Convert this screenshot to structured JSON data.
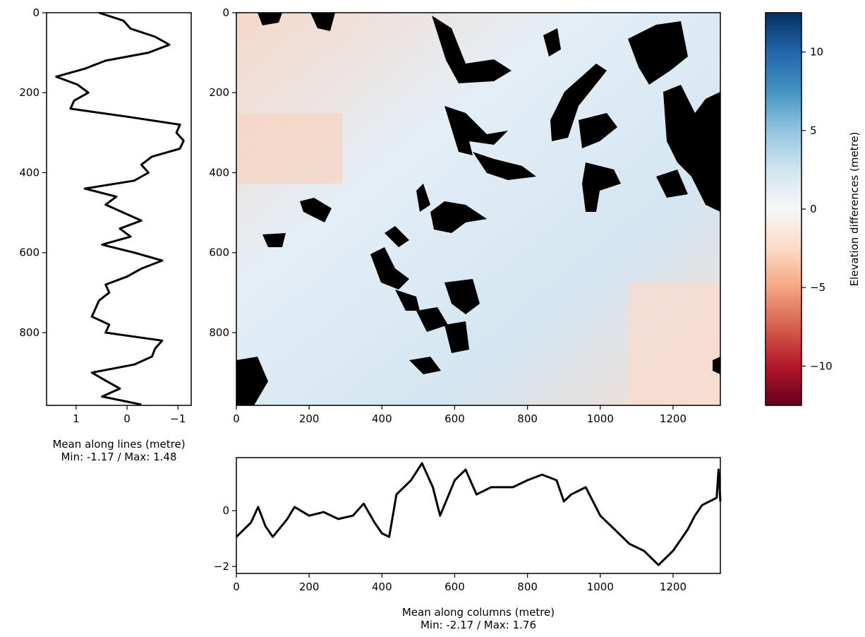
{
  "chart_data": [
    {
      "type": "line",
      "orientation": "vertical",
      "color": "#000000",
      "rows": [
        0,
        20,
        40,
        60,
        80,
        100,
        120,
        140,
        160,
        180,
        200,
        220,
        240,
        260,
        280,
        300,
        320,
        340,
        360,
        380,
        400,
        420,
        440,
        460,
        480,
        500,
        520,
        540,
        560,
        580,
        600,
        620,
        640,
        660,
        680,
        700,
        720,
        740,
        760,
        780,
        800,
        820,
        840,
        860,
        880,
        900,
        920,
        940,
        960,
        980
      ],
      "values": [
        0.55,
        0.07,
        -0.07,
        -0.55,
        -0.83,
        -0.42,
        0.42,
        0.83,
        1.39,
        0.97,
        0.76,
        1.04,
        1.11,
        0,
        -1.04,
        -0.97,
        -1.11,
        -1.04,
        -0.49,
        -0.28,
        -0.42,
        -0.14,
        0.83,
        0.21,
        0.42,
        0.07,
        -0.28,
        0.14,
        -0.07,
        0.49,
        -0.14,
        -0.69,
        -0.28,
        0,
        0.42,
        0.35,
        0.55,
        0.62,
        0.69,
        0.35,
        0.42,
        -0.69,
        -0.55,
        -0.49,
        -0.14,
        0.69,
        0.42,
        0.14,
        0.49,
        -0.28
      ],
      "xlim": [
        1.58,
        -1.26
      ],
      "xticks": [
        1,
        0,
        {
          "value": -1,
          "label": "−1"
        }
      ],
      "ylim": [
        982,
        0
      ],
      "yticks": [
        0,
        200,
        400,
        600,
        800
      ],
      "xlabel": "Mean along lines (metre)",
      "xlabel_note": "Min: -1.17 / Max: 1.48"
    },
    {
      "type": "image",
      "xlim": [
        0,
        1330
      ],
      "xticks": [
        0,
        200,
        400,
        600,
        800,
        1000,
        1200
      ],
      "ylim": [
        982,
        0
      ],
      "yticks": [
        0,
        200,
        400,
        600,
        800
      ]
    },
    {
      "type": "colorbar",
      "colors": [
        "#67001f",
        "#b2182b",
        "#d6604d",
        "#f4a582",
        "#fddbc7",
        "#f7f7f7",
        "#d1e5f0",
        "#92c5de",
        "#4393c3",
        "#2166ac",
        "#053061"
      ],
      "ylim": [
        -12.5,
        12.5
      ],
      "yticks": [
        {
          "value": -10,
          "label": "−10"
        },
        {
          "value": -5,
          "label": "−5"
        },
        0,
        5,
        10
      ],
      "ylabel": "Elevation differences (metre)"
    },
    {
      "type": "line",
      "orientation": "horizontal",
      "color": "#000000",
      "x": [
        0,
        40,
        60,
        80,
        100,
        140,
        160,
        200,
        240,
        280,
        320,
        350,
        380,
        400,
        420,
        440,
        480,
        510,
        540,
        560,
        600,
        630,
        660,
        700,
        760,
        800,
        840,
        880,
        900,
        920,
        960,
        1000,
        1040,
        1080,
        1120,
        1160,
        1200,
        1240,
        1260,
        1280,
        1320,
        1325,
        1330
      ],
      "values": [
        -0.94,
        -0.43,
        0.13,
        -0.56,
        -0.94,
        -0.3,
        0.13,
        -0.18,
        -0.05,
        -0.3,
        -0.18,
        0.25,
        -0.43,
        -0.81,
        -0.94,
        0.58,
        1.09,
        1.7,
        0.84,
        -0.18,
        1.09,
        1.47,
        0.58,
        0.84,
        0.84,
        1.09,
        1.29,
        1.09,
        0.33,
        0.58,
        0.84,
        -0.18,
        -0.68,
        -1.19,
        -1.44,
        -1.95,
        -1.44,
        -0.68,
        -0.18,
        0.2,
        0.46,
        1.47,
        0.33
      ],
      "xlim": [
        0,
        1330
      ],
      "xticks": [
        0,
        200,
        400,
        600,
        800,
        1000,
        1200
      ],
      "ylim": [
        -2.25,
        1.9
      ],
      "yticks": [
        {
          "value": -2,
          "label": "−2"
        },
        0
      ],
      "xlabel": "Mean along columns (metre)",
      "xlabel_note": "Min: -2.17 / Max: 1.76"
    }
  ]
}
